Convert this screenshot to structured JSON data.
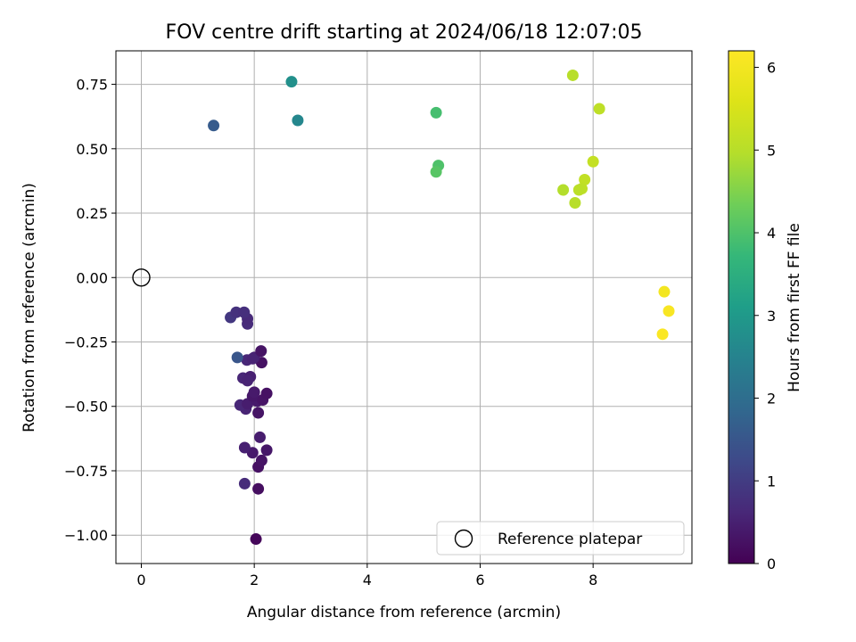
{
  "chart_data": {
    "type": "scatter",
    "title": "FOV centre drift starting at 2024/06/18 12:07:05",
    "xlabel": "Angular distance from reference (arcmin)",
    "ylabel": "Rotation from reference (arcmin)",
    "xlim": [
      -0.45,
      9.75
    ],
    "ylim": [
      -1.11,
      0.88
    ],
    "xticks": [
      {
        "v": 0,
        "label": "0"
      },
      {
        "v": 2,
        "label": "2"
      },
      {
        "v": 4,
        "label": "4"
      },
      {
        "v": 6,
        "label": "6"
      },
      {
        "v": 8,
        "label": "8"
      }
    ],
    "yticks": [
      {
        "v": 0.75,
        "label": "0.75"
      },
      {
        "v": 0.5,
        "label": "0.50"
      },
      {
        "v": 0.25,
        "label": "0.25"
      },
      {
        "v": 0,
        "label": "0.00"
      },
      {
        "v": -0.25,
        "label": "−0.25"
      },
      {
        "v": -0.5,
        "label": "−0.50"
      },
      {
        "v": -0.75,
        "label": "−0.75"
      },
      {
        "v": -1.0,
        "label": "−1.00"
      }
    ],
    "grid": true,
    "legend": {
      "position": "lower right",
      "entries": [
        {
          "label": "Reference platepar",
          "marker": "open-circle",
          "x": 0,
          "y": 0
        }
      ]
    },
    "colorbar": {
      "label": "Hours from first FF file",
      "colormap": "viridis",
      "range": [
        0,
        6.2
      ],
      "ticks": [
        {
          "v": 0,
          "label": "0"
        },
        {
          "v": 1,
          "label": "1"
        },
        {
          "v": 2,
          "label": "2"
        },
        {
          "v": 3,
          "label": "3"
        },
        {
          "v": 4,
          "label": "4"
        },
        {
          "v": 5,
          "label": "5"
        },
        {
          "v": 6,
          "label": "6"
        }
      ]
    },
    "points": [
      {
        "x": 2.03,
        "y": -1.015,
        "c": 0.1
      },
      {
        "x": 2.07,
        "y": -0.82,
        "c": 0.2
      },
      {
        "x": 1.83,
        "y": -0.8,
        "c": 0.7
      },
      {
        "x": 2.07,
        "y": -0.735,
        "c": 0.25
      },
      {
        "x": 2.13,
        "y": -0.71,
        "c": 0.3
      },
      {
        "x": 2.22,
        "y": -0.67,
        "c": 0.35
      },
      {
        "x": 1.97,
        "y": -0.68,
        "c": 0.4
      },
      {
        "x": 1.83,
        "y": -0.66,
        "c": 0.5
      },
      {
        "x": 2.1,
        "y": -0.62,
        "c": 0.45
      },
      {
        "x": 2.07,
        "y": -0.525,
        "c": 0.3
      },
      {
        "x": 1.85,
        "y": -0.51,
        "c": 0.55
      },
      {
        "x": 1.75,
        "y": -0.495,
        "c": 0.6
      },
      {
        "x": 1.88,
        "y": -0.49,
        "c": 0.45
      },
      {
        "x": 2.05,
        "y": -0.48,
        "c": 0.4
      },
      {
        "x": 2.15,
        "y": -0.475,
        "c": 0.3
      },
      {
        "x": 1.97,
        "y": -0.46,
        "c": 0.35
      },
      {
        "x": 2.22,
        "y": -0.45,
        "c": 0.25
      },
      {
        "x": 2.0,
        "y": -0.445,
        "c": 0.4
      },
      {
        "x": 1.8,
        "y": -0.39,
        "c": 0.6
      },
      {
        "x": 1.93,
        "y": -0.385,
        "c": 0.5
      },
      {
        "x": 1.88,
        "y": -0.4,
        "c": 0.55
      },
      {
        "x": 2.13,
        "y": -0.33,
        "c": 0.25
      },
      {
        "x": 1.87,
        "y": -0.32,
        "c": 0.6
      },
      {
        "x": 2.0,
        "y": -0.31,
        "c": 0.5
      },
      {
        "x": 1.97,
        "y": -0.315,
        "c": 0.55
      },
      {
        "x": 1.7,
        "y": -0.31,
        "c": 1.5
      },
      {
        "x": 2.12,
        "y": -0.285,
        "c": 0.3
      },
      {
        "x": 1.88,
        "y": -0.18,
        "c": 0.7
      },
      {
        "x": 1.88,
        "y": -0.16,
        "c": 0.65
      },
      {
        "x": 1.58,
        "y": -0.155,
        "c": 0.9
      },
      {
        "x": 1.68,
        "y": -0.135,
        "c": 0.8
      },
      {
        "x": 1.82,
        "y": -0.135,
        "c": 0.75
      },
      {
        "x": 1.28,
        "y": 0.59,
        "c": 1.6
      },
      {
        "x": 2.66,
        "y": 0.76,
        "c": 2.8
      },
      {
        "x": 2.77,
        "y": 0.61,
        "c": 2.6
      },
      {
        "x": 5.22,
        "y": 0.64,
        "c": 3.9
      },
      {
        "x": 5.26,
        "y": 0.435,
        "c": 4.0
      },
      {
        "x": 5.22,
        "y": 0.41,
        "c": 4.1
      },
      {
        "x": 7.64,
        "y": 0.785,
        "c": 5.0
      },
      {
        "x": 8.11,
        "y": 0.655,
        "c": 5.1
      },
      {
        "x": 8.0,
        "y": 0.45,
        "c": 5.2
      },
      {
        "x": 7.85,
        "y": 0.38,
        "c": 5.15
      },
      {
        "x": 7.8,
        "y": 0.345,
        "c": 5.1
      },
      {
        "x": 7.75,
        "y": 0.34,
        "c": 5.05
      },
      {
        "x": 7.47,
        "y": 0.34,
        "c": 4.95
      },
      {
        "x": 7.68,
        "y": 0.29,
        "c": 5.0
      },
      {
        "x": 9.26,
        "y": -0.055,
        "c": 6.0
      },
      {
        "x": 9.34,
        "y": -0.13,
        "c": 6.1
      },
      {
        "x": 9.23,
        "y": -0.22,
        "c": 6.15
      }
    ]
  }
}
